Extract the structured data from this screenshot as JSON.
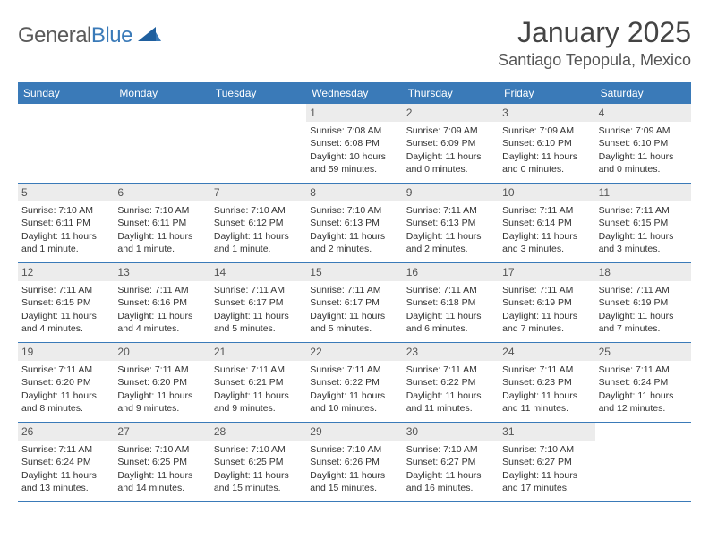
{
  "logo": {
    "word1": "General",
    "word2": "Blue"
  },
  "title": "January 2025",
  "location": "Santiago Tepopula, Mexico",
  "header_bg": "#3a7ab8",
  "dow": [
    "Sunday",
    "Monday",
    "Tuesday",
    "Wednesday",
    "Thursday",
    "Friday",
    "Saturday"
  ],
  "weeks": [
    [
      {
        "n": "",
        "sr": "",
        "ss": "",
        "dl": ""
      },
      {
        "n": "",
        "sr": "",
        "ss": "",
        "dl": ""
      },
      {
        "n": "",
        "sr": "",
        "ss": "",
        "dl": ""
      },
      {
        "n": "1",
        "sr": "Sunrise: 7:08 AM",
        "ss": "Sunset: 6:08 PM",
        "dl": "Daylight: 10 hours and 59 minutes."
      },
      {
        "n": "2",
        "sr": "Sunrise: 7:09 AM",
        "ss": "Sunset: 6:09 PM",
        "dl": "Daylight: 11 hours and 0 minutes."
      },
      {
        "n": "3",
        "sr": "Sunrise: 7:09 AM",
        "ss": "Sunset: 6:10 PM",
        "dl": "Daylight: 11 hours and 0 minutes."
      },
      {
        "n": "4",
        "sr": "Sunrise: 7:09 AM",
        "ss": "Sunset: 6:10 PM",
        "dl": "Daylight: 11 hours and 0 minutes."
      }
    ],
    [
      {
        "n": "5",
        "sr": "Sunrise: 7:10 AM",
        "ss": "Sunset: 6:11 PM",
        "dl": "Daylight: 11 hours and 1 minute."
      },
      {
        "n": "6",
        "sr": "Sunrise: 7:10 AM",
        "ss": "Sunset: 6:11 PM",
        "dl": "Daylight: 11 hours and 1 minute."
      },
      {
        "n": "7",
        "sr": "Sunrise: 7:10 AM",
        "ss": "Sunset: 6:12 PM",
        "dl": "Daylight: 11 hours and 1 minute."
      },
      {
        "n": "8",
        "sr": "Sunrise: 7:10 AM",
        "ss": "Sunset: 6:13 PM",
        "dl": "Daylight: 11 hours and 2 minutes."
      },
      {
        "n": "9",
        "sr": "Sunrise: 7:11 AM",
        "ss": "Sunset: 6:13 PM",
        "dl": "Daylight: 11 hours and 2 minutes."
      },
      {
        "n": "10",
        "sr": "Sunrise: 7:11 AM",
        "ss": "Sunset: 6:14 PM",
        "dl": "Daylight: 11 hours and 3 minutes."
      },
      {
        "n": "11",
        "sr": "Sunrise: 7:11 AM",
        "ss": "Sunset: 6:15 PM",
        "dl": "Daylight: 11 hours and 3 minutes."
      }
    ],
    [
      {
        "n": "12",
        "sr": "Sunrise: 7:11 AM",
        "ss": "Sunset: 6:15 PM",
        "dl": "Daylight: 11 hours and 4 minutes."
      },
      {
        "n": "13",
        "sr": "Sunrise: 7:11 AM",
        "ss": "Sunset: 6:16 PM",
        "dl": "Daylight: 11 hours and 4 minutes."
      },
      {
        "n": "14",
        "sr": "Sunrise: 7:11 AM",
        "ss": "Sunset: 6:17 PM",
        "dl": "Daylight: 11 hours and 5 minutes."
      },
      {
        "n": "15",
        "sr": "Sunrise: 7:11 AM",
        "ss": "Sunset: 6:17 PM",
        "dl": "Daylight: 11 hours and 5 minutes."
      },
      {
        "n": "16",
        "sr": "Sunrise: 7:11 AM",
        "ss": "Sunset: 6:18 PM",
        "dl": "Daylight: 11 hours and 6 minutes."
      },
      {
        "n": "17",
        "sr": "Sunrise: 7:11 AM",
        "ss": "Sunset: 6:19 PM",
        "dl": "Daylight: 11 hours and 7 minutes."
      },
      {
        "n": "18",
        "sr": "Sunrise: 7:11 AM",
        "ss": "Sunset: 6:19 PM",
        "dl": "Daylight: 11 hours and 7 minutes."
      }
    ],
    [
      {
        "n": "19",
        "sr": "Sunrise: 7:11 AM",
        "ss": "Sunset: 6:20 PM",
        "dl": "Daylight: 11 hours and 8 minutes."
      },
      {
        "n": "20",
        "sr": "Sunrise: 7:11 AM",
        "ss": "Sunset: 6:20 PM",
        "dl": "Daylight: 11 hours and 9 minutes."
      },
      {
        "n": "21",
        "sr": "Sunrise: 7:11 AM",
        "ss": "Sunset: 6:21 PM",
        "dl": "Daylight: 11 hours and 9 minutes."
      },
      {
        "n": "22",
        "sr": "Sunrise: 7:11 AM",
        "ss": "Sunset: 6:22 PM",
        "dl": "Daylight: 11 hours and 10 minutes."
      },
      {
        "n": "23",
        "sr": "Sunrise: 7:11 AM",
        "ss": "Sunset: 6:22 PM",
        "dl": "Daylight: 11 hours and 11 minutes."
      },
      {
        "n": "24",
        "sr": "Sunrise: 7:11 AM",
        "ss": "Sunset: 6:23 PM",
        "dl": "Daylight: 11 hours and 11 minutes."
      },
      {
        "n": "25",
        "sr": "Sunrise: 7:11 AM",
        "ss": "Sunset: 6:24 PM",
        "dl": "Daylight: 11 hours and 12 minutes."
      }
    ],
    [
      {
        "n": "26",
        "sr": "Sunrise: 7:11 AM",
        "ss": "Sunset: 6:24 PM",
        "dl": "Daylight: 11 hours and 13 minutes."
      },
      {
        "n": "27",
        "sr": "Sunrise: 7:10 AM",
        "ss": "Sunset: 6:25 PM",
        "dl": "Daylight: 11 hours and 14 minutes."
      },
      {
        "n": "28",
        "sr": "Sunrise: 7:10 AM",
        "ss": "Sunset: 6:25 PM",
        "dl": "Daylight: 11 hours and 15 minutes."
      },
      {
        "n": "29",
        "sr": "Sunrise: 7:10 AM",
        "ss": "Sunset: 6:26 PM",
        "dl": "Daylight: 11 hours and 15 minutes."
      },
      {
        "n": "30",
        "sr": "Sunrise: 7:10 AM",
        "ss": "Sunset: 6:27 PM",
        "dl": "Daylight: 11 hours and 16 minutes."
      },
      {
        "n": "31",
        "sr": "Sunrise: 7:10 AM",
        "ss": "Sunset: 6:27 PM",
        "dl": "Daylight: 11 hours and 17 minutes."
      },
      {
        "n": "",
        "sr": "",
        "ss": "",
        "dl": ""
      }
    ]
  ]
}
